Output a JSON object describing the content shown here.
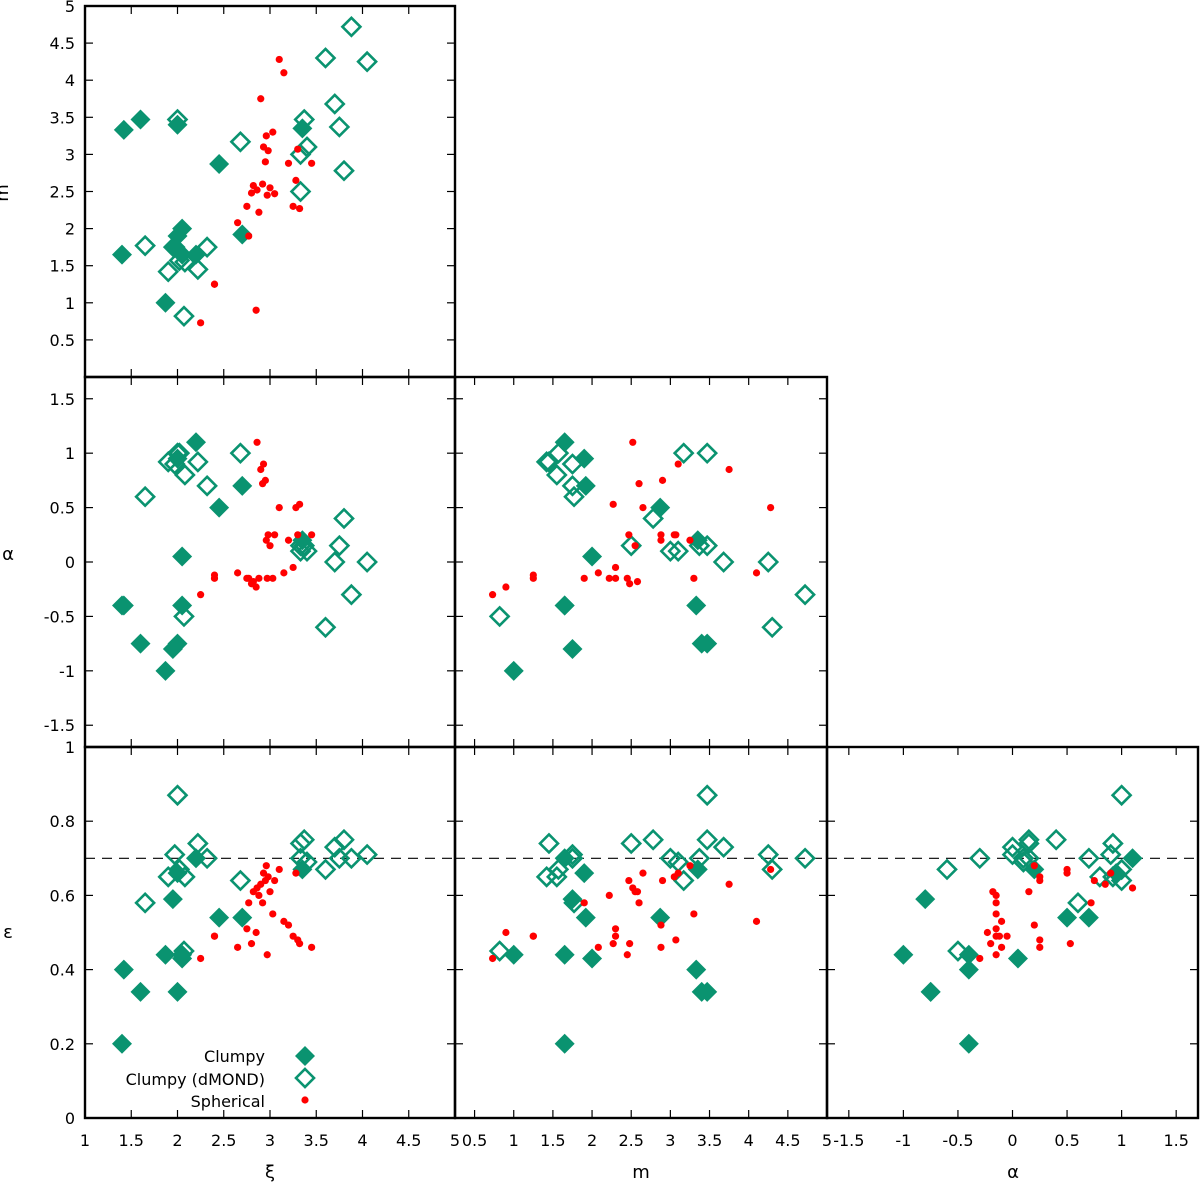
{
  "colors": {
    "clumpy": "#0a9370",
    "spherical": "#ff0000",
    "frame": "#000000"
  },
  "legend": {
    "position": "lower-left of bottom-left panel",
    "entries": [
      {
        "label": "Clumpy",
        "marker": "filled-diamond"
      },
      {
        "label": "Clumpy (dMOND)",
        "marker": "open-diamond"
      },
      {
        "label": "Spherical",
        "marker": "small-red-dot"
      }
    ]
  },
  "axes": {
    "xi": {
      "label": "ξ",
      "range": [
        1,
        5
      ],
      "ticks": [
        "1",
        "1.5",
        "2",
        "2.5",
        "3",
        "3.5",
        "4",
        "4.5",
        "5"
      ]
    },
    "m": {
      "label": "m",
      "range_x": [
        0.25,
        5
      ],
      "range_y": [
        0,
        5
      ],
      "ticks_x": [
        "0.5",
        "1",
        "1.5",
        "2",
        "2.5",
        "3",
        "3.5",
        "4",
        "4.5",
        "5"
      ],
      "ticks_y": [
        "0.5",
        "1",
        "1.5",
        "2",
        "2.5",
        "3",
        "3.5",
        "4",
        "4.5",
        "5"
      ]
    },
    "alpha": {
      "label": "α",
      "range": [
        -1.7,
        1.7
      ],
      "ticks": [
        "-1.5",
        "-1",
        "-0.5",
        "0",
        "0.5",
        "1",
        "1.5"
      ]
    },
    "eps": {
      "label": "ε",
      "range": [
        0,
        1
      ],
      "ticks": [
        "0",
        "0.2",
        "0.4",
        "0.6",
        "0.8",
        "1"
      ],
      "reference_line": 0.7
    }
  },
  "chart_data": {
    "type": "scatter",
    "layout": "corner plot (lower triangle)",
    "panels": [
      {
        "x": "ξ",
        "y": "m"
      },
      {
        "x": "ξ",
        "y": "α"
      },
      {
        "x": "m",
        "y": "α"
      },
      {
        "x": "ξ",
        "y": "ε"
      },
      {
        "x": "m",
        "y": "ε"
      },
      {
        "x": "α",
        "y": "ε"
      }
    ],
    "reference_line": {
      "y": "ε",
      "value": 0.7,
      "style": "dashed"
    },
    "series": [
      {
        "name": "Clumpy",
        "points": [
          {
            "xi": 1.4,
            "m": 1.65,
            "alpha": -0.4,
            "eps": 0.2
          },
          {
            "xi": 1.42,
            "m": 3.33,
            "alpha": -0.4,
            "eps": 0.4
          },
          {
            "xi": 1.6,
            "m": 3.47,
            "alpha": -0.75,
            "eps": 0.34
          },
          {
            "xi": 1.87,
            "m": 1.0,
            "alpha": -1.0,
            "eps": 0.44
          },
          {
            "xi": 1.95,
            "m": 1.75,
            "alpha": -0.8,
            "eps": 0.59
          },
          {
            "xi": 2.0,
            "m": 3.4,
            "alpha": -0.75,
            "eps": 0.34
          },
          {
            "xi": 2.05,
            "m": 2.0,
            "alpha": 0.05,
            "eps": 0.43
          },
          {
            "xi": 2.0,
            "m": 1.9,
            "alpha": 0.95,
            "eps": 0.66
          },
          {
            "xi": 2.05,
            "m": 1.65,
            "alpha": -0.4,
            "eps": 0.44
          },
          {
            "xi": 2.2,
            "m": 1.65,
            "alpha": 1.1,
            "eps": 0.7
          },
          {
            "xi": 2.45,
            "m": 2.87,
            "alpha": 0.5,
            "eps": 0.54
          },
          {
            "xi": 2.7,
            "m": 1.92,
            "alpha": 0.7,
            "eps": 0.54
          },
          {
            "xi": 3.35,
            "m": 3.35,
            "alpha": 0.2,
            "eps": 0.67
          }
        ]
      },
      {
        "name": "Clumpy (dMOND)",
        "points": [
          {
            "xi": 1.65,
            "m": 1.77,
            "alpha": 0.6,
            "eps": 0.58
          },
          {
            "xi": 1.9,
            "m": 1.42,
            "alpha": 0.92,
            "eps": 0.65
          },
          {
            "xi": 1.97,
            "m": 1.75,
            "alpha": 0.9,
            "eps": 0.71
          },
          {
            "xi": 2.02,
            "m": 1.57,
            "alpha": 1.0,
            "eps": 0.67
          },
          {
            "xi": 2.07,
            "m": 0.82,
            "alpha": -0.5,
            "eps": 0.45
          },
          {
            "xi": 2.08,
            "m": 1.55,
            "alpha": 0.8,
            "eps": 0.65
          },
          {
            "xi": 2.22,
            "m": 1.45,
            "alpha": 0.92,
            "eps": 0.74
          },
          {
            "xi": 2.32,
            "m": 1.75,
            "alpha": 0.7,
            "eps": 0.7
          },
          {
            "xi": 2.68,
            "m": 3.17,
            "alpha": 1.0,
            "eps": 0.64
          },
          {
            "xi": 3.33,
            "m": 2.5,
            "alpha": 0.15,
            "eps": 0.74
          },
          {
            "xi": 3.33,
            "m": 3.0,
            "alpha": 0.1,
            "eps": 0.7
          },
          {
            "xi": 3.37,
            "m": 3.47,
            "alpha": 0.15,
            "eps": 0.75
          },
          {
            "xi": 3.4,
            "m": 3.1,
            "alpha": 0.1,
            "eps": 0.69
          },
          {
            "xi": 3.6,
            "m": 4.3,
            "alpha": -0.6,
            "eps": 0.67
          },
          {
            "xi": 3.7,
            "m": 3.68,
            "alpha": 0.0,
            "eps": 0.73
          },
          {
            "xi": 3.75,
            "m": 3.37,
            "alpha": 0.15,
            "eps": 0.7
          },
          {
            "xi": 3.8,
            "m": 2.78,
            "alpha": 0.4,
            "eps": 0.75
          },
          {
            "xi": 3.88,
            "m": 4.72,
            "alpha": -0.3,
            "eps": 0.7
          },
          {
            "xi": 4.05,
            "m": 4.25,
            "alpha": 0.0,
            "eps": 0.71
          },
          {
            "xi": 2.0,
            "m": 3.47,
            "alpha": 1.0,
            "eps": 0.87
          }
        ]
      },
      {
        "name": "Spherical",
        "points": [
          {
            "xi": 2.25,
            "m": 0.73,
            "alpha": -0.3,
            "eps": 0.43
          },
          {
            "xi": 2.4,
            "m": 1.25,
            "alpha": -0.12,
            "eps": 0.49
          },
          {
            "xi": 2.4,
            "m": 1.25,
            "alpha": -0.15,
            "eps": 0.49
          },
          {
            "xi": 2.65,
            "m": 2.08,
            "alpha": -0.1,
            "eps": 0.46
          },
          {
            "xi": 2.75,
            "m": 2.3,
            "alpha": -0.15,
            "eps": 0.51
          },
          {
            "xi": 2.77,
            "m": 1.9,
            "alpha": -0.15,
            "eps": 0.58
          },
          {
            "xi": 2.8,
            "m": 2.48,
            "alpha": -0.2,
            "eps": 0.47
          },
          {
            "xi": 2.82,
            "m": 2.58,
            "alpha": -0.18,
            "eps": 0.61
          },
          {
            "xi": 2.85,
            "m": 0.9,
            "alpha": -0.23,
            "eps": 0.5
          },
          {
            "xi": 2.86,
            "m": 2.52,
            "alpha": 1.1,
            "eps": 0.62
          },
          {
            "xi": 2.88,
            "m": 2.22,
            "alpha": -0.15,
            "eps": 0.6
          },
          {
            "xi": 2.9,
            "m": 3.75,
            "alpha": 0.85,
            "eps": 0.63
          },
          {
            "xi": 2.92,
            "m": 2.6,
            "alpha": 0.72,
            "eps": 0.58
          },
          {
            "xi": 2.93,
            "m": 3.1,
            "alpha": 0.9,
            "eps": 0.66
          },
          {
            "xi": 2.95,
            "m": 2.9,
            "alpha": 0.75,
            "eps": 0.64
          },
          {
            "xi": 2.96,
            "m": 3.25,
            "alpha": 0.2,
            "eps": 0.68
          },
          {
            "xi": 2.97,
            "m": 2.45,
            "alpha": -0.15,
            "eps": 0.44
          },
          {
            "xi": 2.98,
            "m": 3.05,
            "alpha": 0.25,
            "eps": 0.65
          },
          {
            "xi": 3.0,
            "m": 2.55,
            "alpha": 0.15,
            "eps": 0.61
          },
          {
            "xi": 3.03,
            "m": 3.3,
            "alpha": -0.15,
            "eps": 0.55
          },
          {
            "xi": 3.05,
            "m": 2.47,
            "alpha": 0.25,
            "eps": 0.64
          },
          {
            "xi": 3.1,
            "m": 4.28,
            "alpha": 0.5,
            "eps": 0.67
          },
          {
            "xi": 3.15,
            "m": 4.1,
            "alpha": -0.1,
            "eps": 0.53
          },
          {
            "xi": 3.2,
            "m": 2.88,
            "alpha": 0.2,
            "eps": 0.52
          },
          {
            "xi": 3.25,
            "m": 2.3,
            "alpha": -0.05,
            "eps": 0.49
          },
          {
            "xi": 3.28,
            "m": 2.65,
            "alpha": 0.5,
            "eps": 0.66
          },
          {
            "xi": 3.3,
            "m": 3.07,
            "alpha": 0.25,
            "eps": 0.48
          },
          {
            "xi": 3.32,
            "m": 2.27,
            "alpha": 0.53,
            "eps": 0.47
          },
          {
            "xi": 3.45,
            "m": 2.88,
            "alpha": 0.25,
            "eps": 0.46
          }
        ]
      }
    ]
  }
}
